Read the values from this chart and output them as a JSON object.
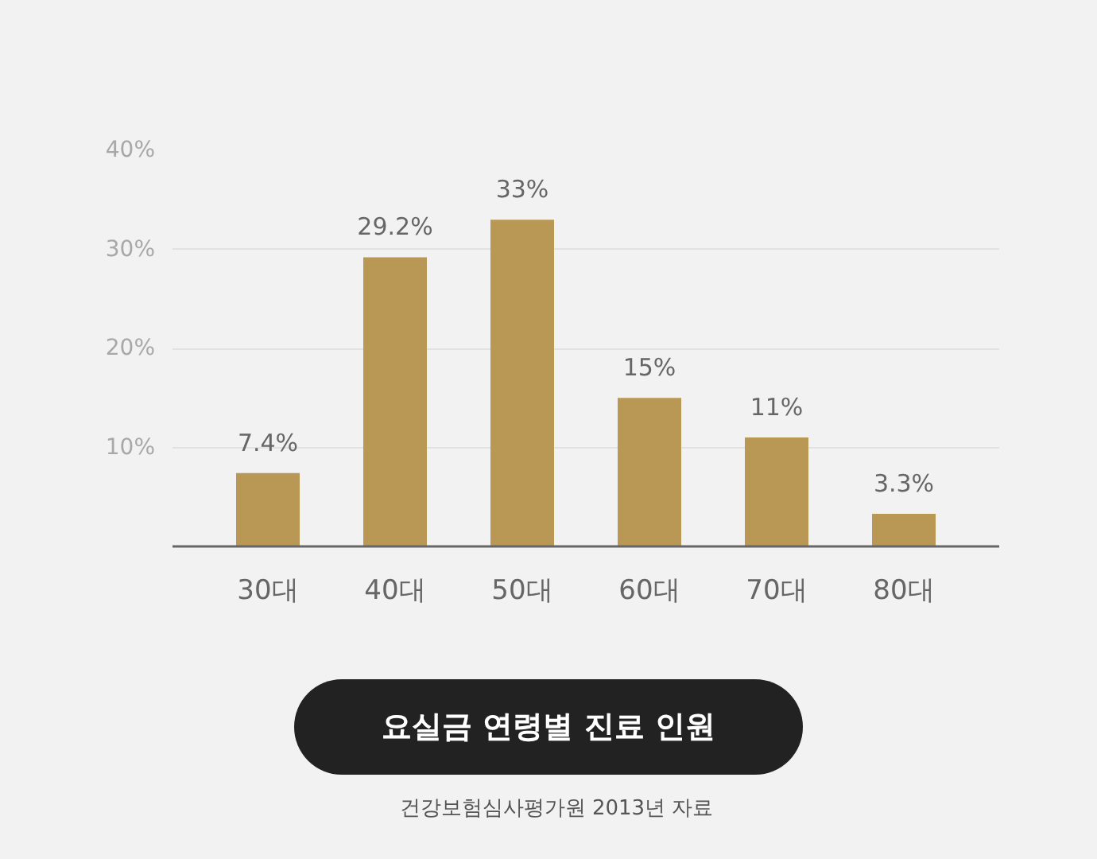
{
  "chart_data": {
    "type": "bar",
    "title": "요실금 연령별 진료 인원",
    "annotations": [
      "건강보험심사평가원 2013년 자료"
    ],
    "categories": [
      "30대",
      "40대",
      "50대",
      "60대",
      "70대",
      "80대"
    ],
    "values": [
      7.4,
      29.2,
      33,
      15,
      11,
      3.3
    ],
    "value_labels": [
      "7.4%",
      "29.2%",
      "33%",
      "15%",
      "11%",
      "3.3%"
    ],
    "color": "#b99855",
    "ylim": [
      0,
      40
    ],
    "yticks": [
      {
        "value": 10,
        "label": "10%"
      },
      {
        "value": 20,
        "label": "20%"
      },
      {
        "value": 30,
        "label": "30%"
      },
      {
        "value": 40,
        "label": "40%"
      }
    ],
    "grid": "y"
  }
}
